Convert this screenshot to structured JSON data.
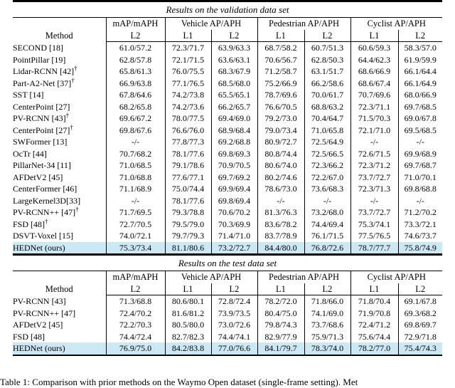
{
  "colors": {
    "highlight_row": "#cde8f5",
    "text": "#000000"
  },
  "dagger_symbol": "†",
  "caption": "Table 1: Comparison with prior methods on the Waymo Open dataset (single-frame setting). Met",
  "tables": [
    {
      "title": "Results on the validation data set",
      "header": {
        "method": "Method",
        "map_group": "mAP/mAPH",
        "vehicle_group": "Vehicle AP/APH",
        "pedestrian_group": "Pedestrian AP/APH",
        "cyclist_group": "Cyclist AP/APH",
        "subs": [
          "L2",
          "L1",
          "L2",
          "L1",
          "L2",
          "L1",
          "L2"
        ]
      },
      "rows": [
        {
          "method": "SECOND [18]",
          "dagger": false,
          "highlight": false,
          "bold_cells": [],
          "cells": [
            "61.0/57.2",
            "72.3/71.7",
            "63.9/63.3",
            "68.7/58.2",
            "60.7/51.3",
            "60.6/59.3",
            "58.3/57.0"
          ]
        },
        {
          "method": "PointPillar [19]",
          "dagger": false,
          "highlight": false,
          "bold_cells": [],
          "cells": [
            "62.8/57.8",
            "72.1/71.5",
            "63.6/63.1",
            "70.6/56.7",
            "62.8/50.3",
            "64.4/62.3",
            "61.9/59.9"
          ]
        },
        {
          "method": "Lidar-RCNN [42]",
          "dagger": true,
          "highlight": false,
          "bold_cells": [],
          "cells": [
            "65.8/61.3",
            "76.0/75.5",
            "68.3/67.9",
            "71.2/58.7",
            "63.1/51.7",
            "68.6/66.9",
            "66.1/64.4"
          ]
        },
        {
          "method": "Part-A2-Net [37]",
          "dagger": true,
          "highlight": false,
          "bold_cells": [],
          "cells": [
            "66.9/63.8",
            "77.1/76.5",
            "68.5/68.0",
            "75.2/66.9",
            "66.2/58.6",
            "68.6/67.4",
            "66.1/64.9"
          ]
        },
        {
          "method": "SST [14]",
          "dagger": false,
          "highlight": false,
          "bold_cells": [],
          "cells": [
            "67.8/64.6",
            "74.2/73.8",
            "65.5/65.1",
            "78.7/69.6",
            "70.0/61.7",
            "70.7/69.6",
            "68.0/66.9"
          ]
        },
        {
          "method": "CenterPoint [27]",
          "dagger": false,
          "highlight": false,
          "bold_cells": [],
          "cells": [
            "68.2/65.8",
            "74.2/73.6",
            "66.2/65.7",
            "76.6/70.5",
            "68.8/63.2",
            "72.3/71.1",
            "69.7/68.5"
          ]
        },
        {
          "method": "PV-RCNN [43]",
          "dagger": true,
          "highlight": false,
          "bold_cells": [],
          "cells": [
            "69.6/67.2",
            "78.0/77.5",
            "69.4/69.0",
            "79.2/73.0",
            "70.4/64.7",
            "71.5/70.3",
            "69.0/67.8"
          ]
        },
        {
          "method": "CenterPoint [27]",
          "dagger": true,
          "highlight": false,
          "bold_cells": [],
          "cells": [
            "69.8/67.6",
            "76.6/76.0",
            "68.9/68.4",
            "79.0/73.4",
            "71.0/65.8",
            "72.1/71.0",
            "69.5/68.5"
          ]
        },
        {
          "method": "SWFormer [13]",
          "dagger": false,
          "highlight": false,
          "bold_cells": [],
          "cells": [
            "-/-",
            "77.8/77.3",
            "69.2/68.8",
            "80.9/72.7",
            "72.5/64.9",
            "-/-",
            "-/-"
          ]
        },
        {
          "method": "OcTr [44]",
          "dagger": false,
          "highlight": false,
          "bold_cells": [],
          "cells": [
            "70.7/68.2",
            "78.1/77.6",
            "69.8/69.3",
            "80.8/74.4",
            "72.5/66.5",
            "72.6/71.5",
            "69.9/68.9"
          ]
        },
        {
          "method": "PillarNet-34 [11]",
          "dagger": false,
          "highlight": false,
          "bold_cells": [],
          "cells": [
            "71.0/68.5",
            "79.1/78.6",
            "70.9/70.5",
            "80.6/74.0",
            "72.3/66.2",
            "72.3/71.2",
            "69.7/68.7"
          ]
        },
        {
          "method": "AFDetV2 [45]",
          "dagger": false,
          "highlight": false,
          "bold_cells": [],
          "cells": [
            "71.0/68.8",
            "77.6/77.1",
            "69.7/69.2",
            "80.2/74.6",
            "72.2/67.0",
            "73.7/72.7",
            "71.0/70.1"
          ]
        },
        {
          "method": "CenterFormer [46]",
          "dagger": false,
          "highlight": false,
          "bold_cells": [],
          "cells": [
            "71.1/68.9",
            "75.0/74.4",
            "69.9/69.4",
            "78.6/73.0",
            "73.6/68.3",
            "72.3/71.3",
            "69.8/68.8"
          ]
        },
        {
          "method": "LargeKernel3D[33]",
          "dagger": false,
          "highlight": false,
          "bold_cells": [],
          "cells": [
            "-/-",
            "78.1/77.6",
            "69.8/69.4",
            "-/-",
            "-/-",
            "-/-",
            "-/-"
          ]
        },
        {
          "method": "PV-RCNN++ [47]",
          "dagger": true,
          "highlight": false,
          "bold_cells": [],
          "cells": [
            "71.7/69.5",
            "79.3/78.8",
            "70.6/70.2",
            "81.3/76.3",
            "73.2/68.0",
            "73.7/72.7",
            "71.2/70.2"
          ]
        },
        {
          "method": "FSD [48]",
          "dagger": true,
          "highlight": false,
          "bold_cells": [],
          "cells": [
            "72.7/70.5",
            "79.5/79.0",
            "70.3/69.9",
            "83.6/78.2",
            "74.4/69.4",
            "75.3/74.1",
            "73.3/72.1"
          ]
        },
        {
          "method": "DSVT-Voxel [15]",
          "dagger": false,
          "highlight": false,
          "bold_cells": [],
          "cells": [
            "74.0/72.1",
            "79.7/79.3",
            "71.4/71.0",
            "83.7/78.9",
            "76.1/71.5",
            "77.5/76.5",
            "74.6/73.7"
          ]
        },
        {
          "method": "HEDNet (ours)",
          "dagger": false,
          "highlight": true,
          "bold_cells": [
            0,
            2
          ],
          "cells": [
            "75.3/73.4",
            "81.1/80.6",
            "73.2/72.7",
            "84.4/80.0",
            "76.8/72.6",
            "78.7/77.7",
            "75.8/74.9"
          ]
        }
      ]
    },
    {
      "title": "Results on the test data set",
      "header": {
        "method": "Method",
        "map_group": "mAP/mAPH",
        "vehicle_group": "Vehicle AP/APH",
        "pedestrian_group": "Pedestrian AP/APH",
        "cyclist_group": "Cyclist AP/APH",
        "subs": [
          "L2",
          "L1",
          "L2",
          "L1",
          "L2",
          "L1",
          "L2"
        ]
      },
      "rows": [
        {
          "method": "PV-RCNN [43]",
          "dagger": false,
          "highlight": false,
          "bold_cells": [],
          "cells": [
            "71.3/68.8",
            "80.6/80.1",
            "72.8/72.4",
            "78.2/72.0",
            "71.8/66.0",
            "71.8/70.4",
            "69.1/67.8"
          ]
        },
        {
          "method": "PV-RCNN++ [47]",
          "dagger": false,
          "highlight": false,
          "bold_cells": [],
          "cells": [
            "72.4/70.2",
            "81.6/81.2",
            "73.9/73.5",
            "80.4/75.0",
            "74.1/69.0",
            "71.9/70.8",
            "69.3/68.2"
          ]
        },
        {
          "method": "AFDetV2 [45]",
          "dagger": false,
          "highlight": false,
          "bold_cells": [],
          "cells": [
            "72.2/70.3",
            "80.5/80.0",
            "73.0/72.6",
            "79.8/74.3",
            "73.7/68.6",
            "72.4/71.2",
            "69.8/69.7"
          ]
        },
        {
          "method": "FSD [48]",
          "dagger": false,
          "highlight": false,
          "bold_cells": [],
          "cells": [
            "74.4/72.4",
            "82.7/82.3",
            "74.4/74.1",
            "82.9/77.9",
            "75.9/71.3",
            "75.6/74.4",
            "72.9/71.8"
          ]
        },
        {
          "method": "HEDNet (ours)",
          "dagger": false,
          "highlight": true,
          "bold_cells": [
            0,
            2
          ],
          "cells": [
            "76.9/75.0",
            "84.2/83.8",
            "77.0/76.6",
            "84.1/79.7",
            "78.3/74.0",
            "78.2/77.0",
            "75.4/74.3"
          ]
        }
      ]
    }
  ]
}
